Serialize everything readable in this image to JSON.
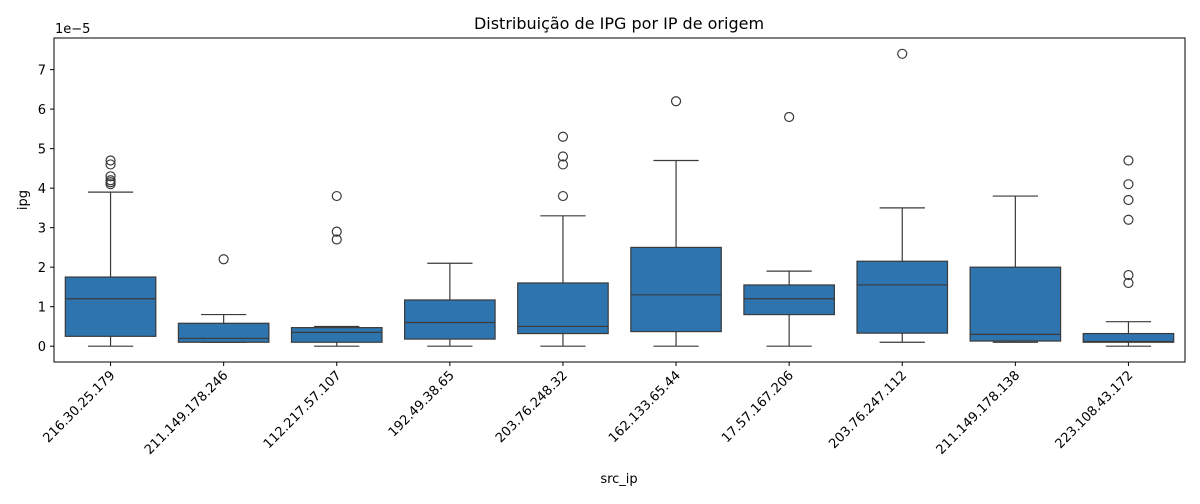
{
  "chart_data": {
    "type": "box",
    "title": "Distribuição de IPG por IP de origem",
    "xlabel": "src_ip",
    "ylabel": "ipg",
    "y_offset_label": "1e−5",
    "y_scale_note": "values in units of 1e-5",
    "ylim": [
      -0.4,
      7.8
    ],
    "yticks": [
      0,
      1,
      2,
      3,
      4,
      5,
      6,
      7
    ],
    "xtick_rotation_deg": 45,
    "color": "#2e75b0",
    "line_color": "#3a3a3a",
    "categories": [
      "216.30.25.179",
      "211.149.178.246",
      "112.217.57.107",
      "192.49.38.65",
      "203.76.248.32",
      "162.133.65.44",
      "17.57.167.206",
      "203.76.247.112",
      "211.149.178.138",
      "223.108.43.172"
    ],
    "boxes": [
      {
        "whislo": 0.0,
        "q1": 0.25,
        "med": 1.2,
        "q3": 1.75,
        "whishi": 3.9,
        "fliers": [
          4.1,
          4.15,
          4.2,
          4.3,
          4.6,
          4.7
        ]
      },
      {
        "whislo": 0.1,
        "q1": 0.1,
        "med": 0.2,
        "q3": 0.58,
        "whishi": 0.8,
        "fliers": [
          2.2
        ]
      },
      {
        "whislo": 0.0,
        "q1": 0.1,
        "med": 0.35,
        "q3": 0.47,
        "whishi": 0.5,
        "fliers": [
          2.7,
          2.9,
          3.8
        ]
      },
      {
        "whislo": 0.0,
        "q1": 0.18,
        "med": 0.6,
        "q3": 1.17,
        "whishi": 2.1,
        "fliers": []
      },
      {
        "whislo": 0.0,
        "q1": 0.32,
        "med": 0.5,
        "q3": 1.6,
        "whishi": 3.3,
        "fliers": [
          3.8,
          4.6,
          4.8,
          5.3
        ]
      },
      {
        "whislo": 0.0,
        "q1": 0.37,
        "med": 1.3,
        "q3": 2.5,
        "whishi": 4.7,
        "fliers": [
          6.2
        ]
      },
      {
        "whislo": 0.0,
        "q1": 0.8,
        "med": 1.2,
        "q3": 1.55,
        "whishi": 1.9,
        "fliers": [
          5.8
        ]
      },
      {
        "whislo": 0.1,
        "q1": 0.33,
        "med": 1.55,
        "q3": 2.15,
        "whishi": 3.5,
        "fliers": [
          7.4
        ]
      },
      {
        "whislo": 0.1,
        "q1": 0.13,
        "med": 0.3,
        "q3": 2.0,
        "whishi": 3.8,
        "fliers": []
      },
      {
        "whislo": 0.0,
        "q1": 0.1,
        "med": 0.12,
        "q3": 0.32,
        "whishi": 0.62,
        "fliers": [
          1.6,
          1.8,
          3.2,
          3.7,
          4.1,
          4.7
        ]
      }
    ],
    "grid": false,
    "legend": "none"
  }
}
